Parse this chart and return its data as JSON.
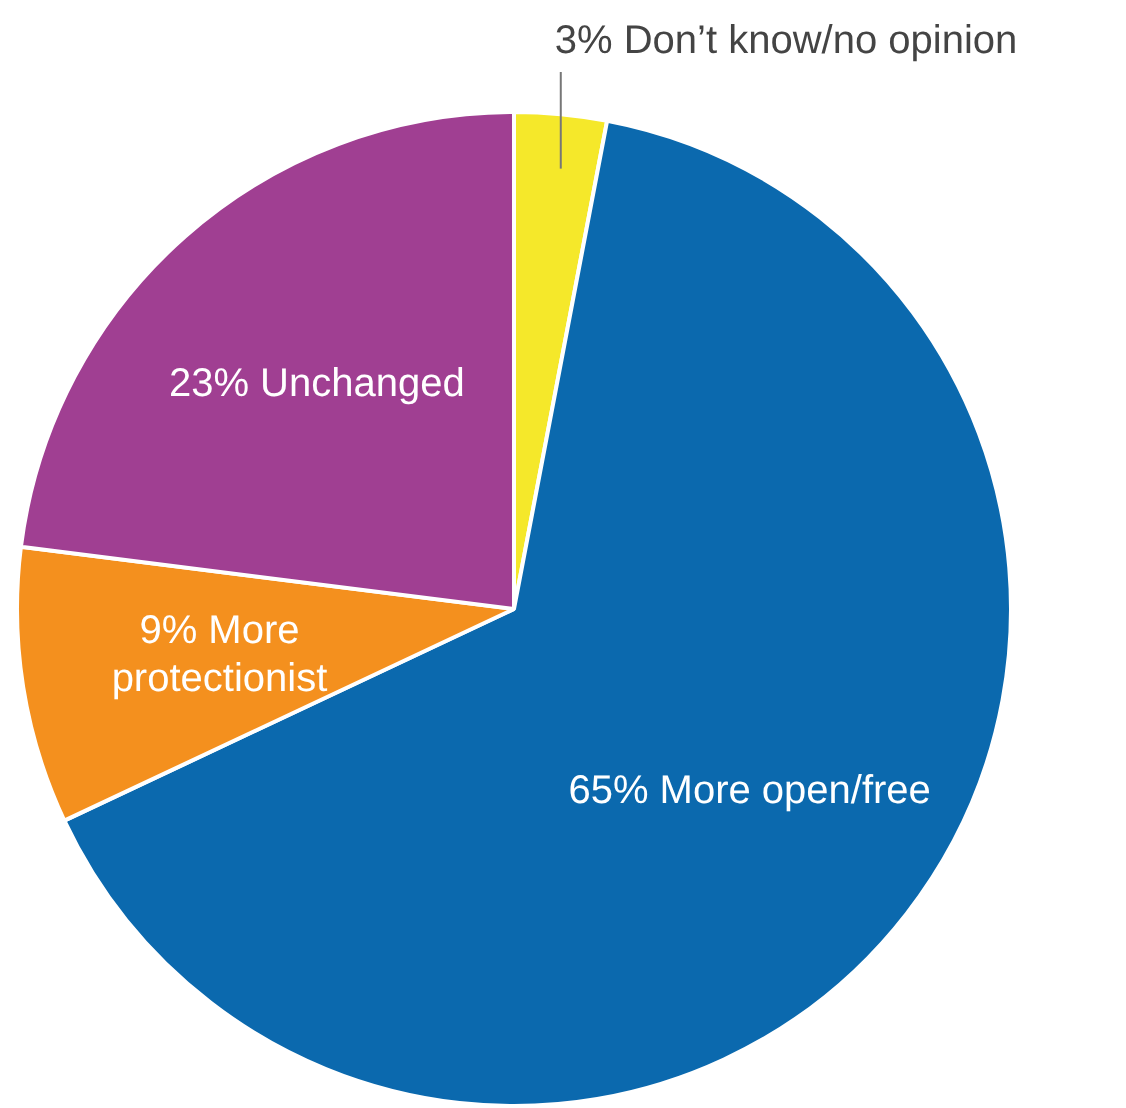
{
  "chart_data": {
    "type": "pie",
    "categories": [
      "Don’t know/no opinion",
      "More open/free",
      "More protectionist",
      "Unchanged"
    ],
    "values": [
      3,
      65,
      9,
      23
    ],
    "value_labels": [
      "3%",
      "65%",
      "9%",
      "23%"
    ],
    "colors": [
      "#f5e82a",
      "#0b69ae",
      "#f4901e",
      "#a03f92"
    ],
    "legend": false
  }
}
